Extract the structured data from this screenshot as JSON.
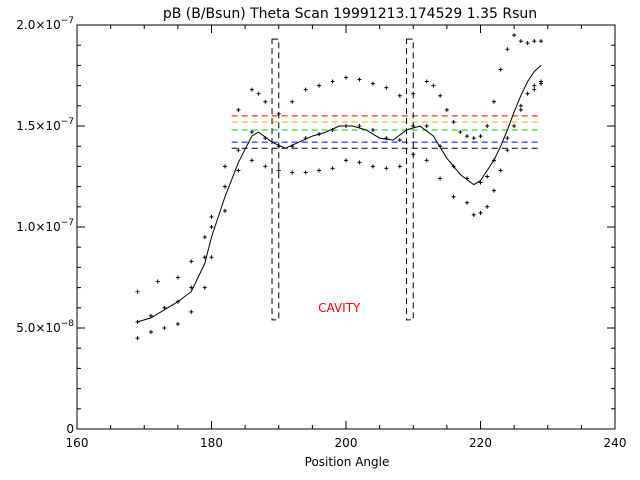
{
  "chart_data": {
    "type": "scatter",
    "title": "pB (B/Bsun) Theta Scan 19991213.174529 1.35 Rsun",
    "xlabel": "Position Angle",
    "ylabel": "",
    "xlim": [
      160,
      240
    ],
    "ylim": [
      0,
      2e-07
    ],
    "x_ticks": [
      160,
      180,
      200,
      220,
      240
    ],
    "x_tick_labels": [
      "160",
      "180",
      "200",
      "220",
      "240"
    ],
    "y_ticks": [
      0,
      5e-08,
      1e-07,
      1.5e-07,
      2e-07
    ],
    "y_tick_labels": [
      {
        "mant": "0",
        "exp": ""
      },
      {
        "mant": "5.0×10",
        "exp": "−8"
      },
      {
        "mant": "1.0×10",
        "exp": "−7"
      },
      {
        "mant": "1.5×10",
        "exp": "−7"
      },
      {
        "mant": "2.0×10",
        "exp": "−7"
      }
    ],
    "grid": false,
    "colors": {
      "axes": "#000000",
      "points": "#000000",
      "annotation": "#ff0000"
    },
    "upper_points": {
      "x": [
        169,
        172,
        175,
        177,
        179,
        180,
        182,
        184,
        186,
        187,
        188,
        190,
        192,
        194,
        196,
        198,
        200,
        202,
        204,
        206,
        208,
        210,
        212,
        213,
        214,
        215,
        216,
        217,
        218,
        219,
        220,
        221,
        222,
        223,
        224,
        225,
        226,
        227,
        228,
        229
      ],
      "y": [
        6.8e-08,
        7.3e-08,
        7.5e-08,
        8.3e-08,
        9.5e-08,
        1.05e-07,
        1.3e-07,
        1.58e-07,
        1.68e-07,
        1.66e-07,
        1.62e-07,
        1.56e-07,
        1.62e-07,
        1.68e-07,
        1.7e-07,
        1.72e-07,
        1.74e-07,
        1.73e-07,
        1.71e-07,
        1.69e-07,
        1.65e-07,
        1.66e-07,
        1.72e-07,
        1.7e-07,
        1.65e-07,
        1.58e-07,
        1.52e-07,
        1.47e-07,
        1.45e-07,
        1.44e-07,
        1.45e-07,
        1.5e-07,
        1.62e-07,
        1.78e-07,
        1.88e-07,
        1.95e-07,
        1.92e-07,
        1.91e-07,
        1.92e-07,
        1.92e-07
      ]
    },
    "mid_points": {
      "x": [
        169,
        171,
        173,
        175,
        177,
        179,
        180,
        182,
        184,
        186,
        188,
        190,
        192,
        194,
        196,
        198,
        200,
        202,
        204,
        206,
        208,
        210,
        212,
        214,
        216,
        218,
        220,
        221,
        222,
        224,
        226,
        228,
        229
      ],
      "y": [
        5.3e-08,
        5.6e-08,
        6e-08,
        6.3e-08,
        7e-08,
        8.5e-08,
        1e-07,
        1.2e-07,
        1.38e-07,
        1.47e-07,
        1.44e-07,
        1.4e-07,
        1.4e-07,
        1.44e-07,
        1.46e-07,
        1.48e-07,
        1.5e-07,
        1.5e-07,
        1.48e-07,
        1.44e-07,
        1.43e-07,
        1.5e-07,
        1.5e-07,
        1.4e-07,
        1.3e-07,
        1.24e-07,
        1.22e-07,
        1.25e-07,
        1.33e-07,
        1.44e-07,
        1.58e-07,
        1.68e-07,
        1.72e-07
      ]
    },
    "lower_points": {
      "x": [
        169,
        171,
        173,
        175,
        177,
        179,
        180,
        182,
        184,
        186,
        188,
        190,
        192,
        194,
        196,
        198,
        200,
        202,
        204,
        206,
        208,
        210,
        212,
        214,
        216,
        218,
        219,
        220,
        221,
        222,
        223,
        224,
        225,
        226,
        227,
        228,
        229
      ],
      "y": [
        4.5e-08,
        4.8e-08,
        5e-08,
        5.2e-08,
        5.8e-08,
        7e-08,
        8.5e-08,
        1.08e-07,
        1.28e-07,
        1.33e-07,
        1.3e-07,
        1.28e-07,
        1.27e-07,
        1.27e-07,
        1.28e-07,
        1.29e-07,
        1.33e-07,
        1.32e-07,
        1.3e-07,
        1.29e-07,
        1.3e-07,
        1.36e-07,
        1.33e-07,
        1.24e-07,
        1.15e-07,
        1.12e-07,
        1.06e-07,
        1.07e-07,
        1.1e-07,
        1.18e-07,
        1.28e-07,
        1.38e-07,
        1.5e-07,
        1.6e-07,
        1.66e-07,
        1.7e-07,
        1.71e-07
      ]
    },
    "smooth_line": {
      "x": [
        169,
        171,
        173,
        175,
        177,
        179,
        180,
        182,
        184,
        186,
        187,
        189,
        191,
        193,
        195,
        197,
        199,
        201,
        203,
        205,
        207,
        209,
        211,
        213,
        215,
        217,
        219,
        220,
        221,
        222,
        223,
        224,
        225,
        226,
        227,
        228,
        229
      ],
      "y": [
        5.3e-08,
        5.5e-08,
        5.9e-08,
        6.3e-08,
        6.8e-08,
        8.2e-08,
        9.5e-08,
        1.15e-07,
        1.32e-07,
        1.45e-07,
        1.47e-07,
        1.42e-07,
        1.39e-07,
        1.42e-07,
        1.45e-07,
        1.47e-07,
        1.5e-07,
        1.5e-07,
        1.48e-07,
        1.44e-07,
        1.43e-07,
        1.48e-07,
        1.5e-07,
        1.45e-07,
        1.34e-07,
        1.26e-07,
        1.21e-07,
        1.23e-07,
        1.28e-07,
        1.33e-07,
        1.4e-07,
        1.48e-07,
        1.57e-07,
        1.65e-07,
        1.72e-07,
        1.77e-07,
        1.8e-07
      ]
    },
    "reference_lines": [
      {
        "y": 1.55e-07,
        "x": [
          183,
          229
        ],
        "color": "#ff0000"
      },
      {
        "y": 1.52e-07,
        "x": [
          183,
          229
        ],
        "color": "#ffa500"
      },
      {
        "y": 1.48e-07,
        "x": [
          183,
          229
        ],
        "color": "#00cc00"
      },
      {
        "y": 1.42e-07,
        "x": [
          183,
          229
        ],
        "color": "#0000ff"
      },
      {
        "y": 1.39e-07,
        "x": [
          183,
          229
        ],
        "color": "#000000"
      }
    ],
    "cavity_boxes": [
      {
        "x": [
          189,
          190
        ],
        "y": [
          5.4e-08,
          1.93e-07
        ]
      },
      {
        "x": [
          209,
          210
        ],
        "y": [
          5.4e-08,
          1.93e-07
        ]
      }
    ],
    "annotations": [
      {
        "text": "CAVITY",
        "x": 199,
        "y": 6e-08,
        "color": "#ff0000"
      }
    ]
  }
}
